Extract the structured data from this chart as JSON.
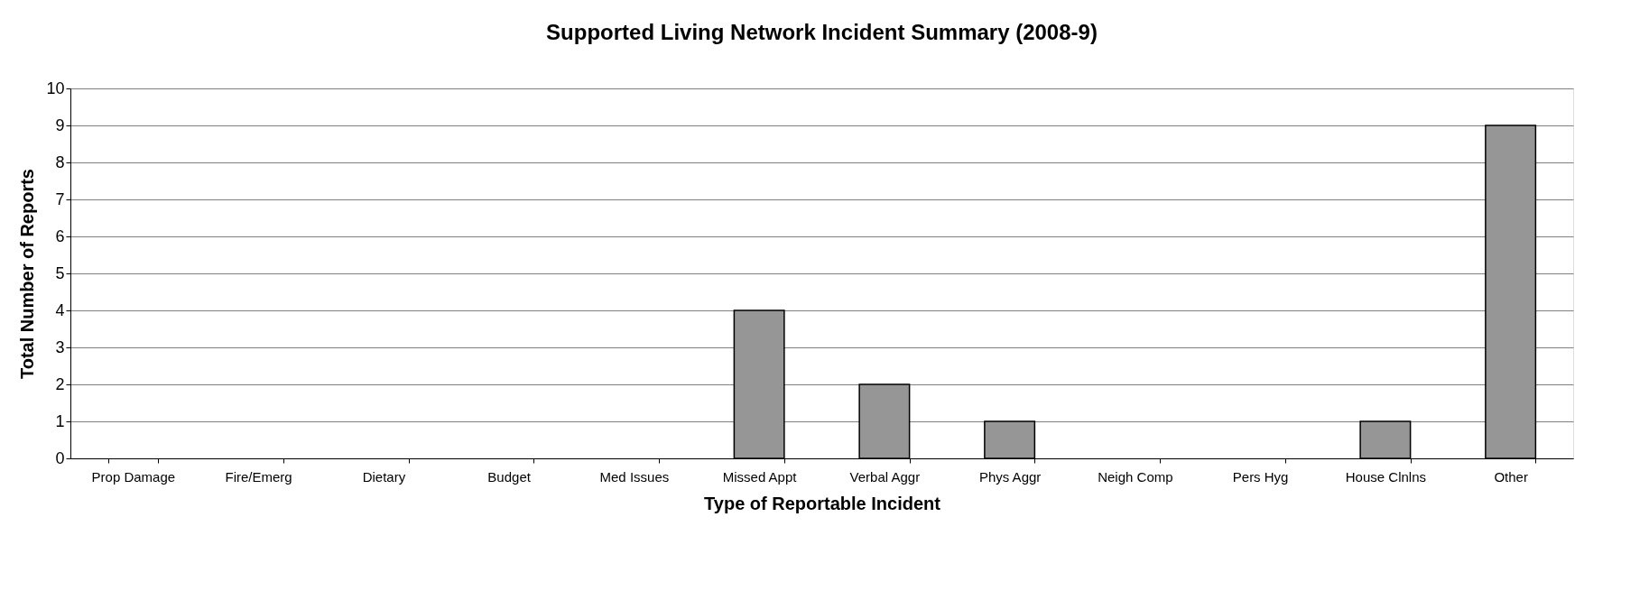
{
  "chart_data": {
    "type": "bar",
    "title": "Supported Living Network Incident Summary (2008-9)",
    "xlabel": "Type of Reportable Incident",
    "ylabel": "Total Number of Reports",
    "categories": [
      "Prop Damage",
      "Fire/Emerg",
      "Dietary",
      "Budget",
      "Med Issues",
      "Missed Appt",
      "Verbal Aggr",
      "Phys Aggr",
      "Neigh Comp",
      "Pers Hyg",
      "House Clnlns",
      "Other"
    ],
    "values": [
      0,
      0,
      0,
      0,
      0,
      4,
      2,
      1,
      0,
      0,
      1,
      9
    ],
    "color": "#969696",
    "ylim": [
      0,
      10
    ],
    "yticks": [
      0,
      1,
      2,
      3,
      4,
      5,
      6,
      7,
      8,
      9,
      10
    ],
    "grid": "y"
  }
}
